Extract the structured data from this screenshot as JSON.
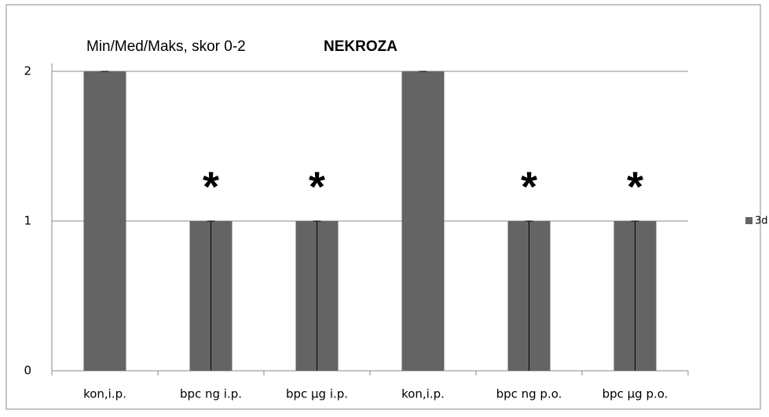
{
  "chart_data": {
    "type": "bar",
    "title": "Min/Med/Maks, skor 0-2",
    "subtitle": "NEKROZA",
    "categories": [
      "kon,i.p.",
      "bpc ng i.p.",
      "bpc µg i.p.",
      "kon,i.p.",
      "bpc ng p.o.",
      "bpc µg p.o."
    ],
    "series": [
      {
        "name": "3d",
        "color": "#646464",
        "values": [
          2,
          1,
          1,
          2,
          1,
          1
        ],
        "min": [
          2,
          0,
          0,
          2,
          0,
          0
        ],
        "max": [
          2,
          1,
          1,
          2,
          1,
          1
        ]
      }
    ],
    "annotations": [
      null,
      "*",
      "*",
      null,
      "*",
      "*"
    ],
    "ylim": [
      0,
      2
    ],
    "yticks": [
      0,
      1,
      2
    ],
    "grid": true,
    "legend": "right"
  }
}
